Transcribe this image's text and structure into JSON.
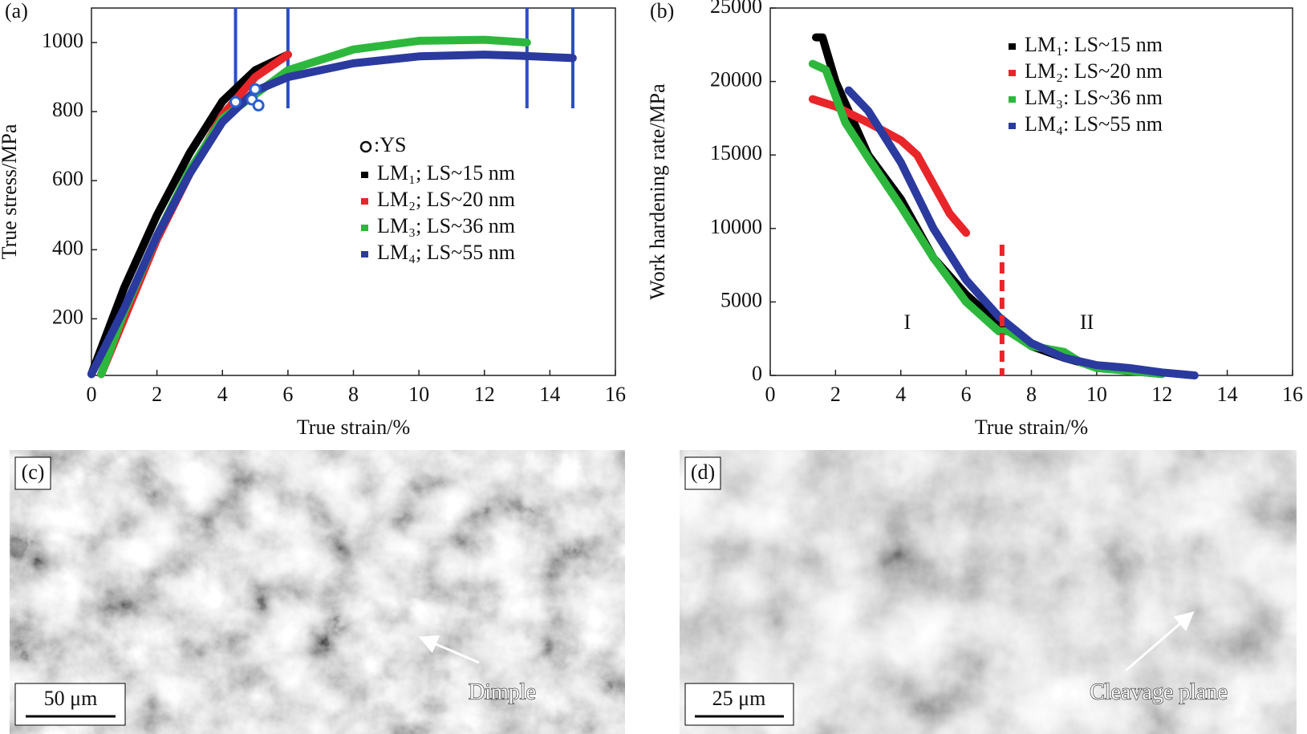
{
  "chart_data": [
    {
      "type": "line",
      "panel_label": "(a)",
      "x_label": "True strain/%",
      "y_label": "True stress/MPa",
      "xlim": [
        0,
        16
      ],
      "xticks": [
        0,
        2,
        4,
        6,
        8,
        10,
        12,
        14,
        16
      ],
      "ylim": [
        36,
        1100
      ],
      "yticks": [
        200,
        400,
        600,
        800,
        1000
      ],
      "legend": "center right",
      "ys": {
        "label": ":YS",
        "color": "#2b5fd0",
        "x": [
          4.4,
          4.9,
          5.0,
          5.1
        ],
        "values": [
          828,
          835,
          865,
          818
        ]
      },
      "fracture_x": [
        4.4,
        6,
        13.3,
        14.7
      ],
      "series": [
        {
          "name": "LM₁; LS~15 nm",
          "color": "#000000",
          "x": [
            0,
            1,
            2,
            3,
            4,
            5,
            6
          ],
          "values": [
            40,
            290,
            500,
            680,
            830,
            920,
            965
          ]
        },
        {
          "name": "LM₂; LS~20 nm",
          "color": "#e8262a",
          "x": [
            0.3,
            2,
            3,
            4,
            5,
            6
          ],
          "values": [
            40,
            430,
            620,
            790,
            900,
            965
          ]
        },
        {
          "name": "LM₃; LS~36 nm",
          "color": "#2db83d",
          "x": [
            0.3,
            1,
            2,
            3,
            4,
            6,
            8,
            10,
            12,
            13.3
          ],
          "values": [
            40,
            220,
            440,
            630,
            780,
            920,
            980,
            1005,
            1008,
            1000
          ]
        },
        {
          "name": "LM₄; LS~55 nm",
          "color": "#2b3a9e",
          "x": [
            0,
            1,
            2,
            3,
            4,
            5,
            6,
            8,
            10,
            12,
            13,
            14.7
          ],
          "values": [
            40,
            230,
            440,
            620,
            770,
            860,
            900,
            940,
            960,
            965,
            962,
            955
          ]
        }
      ]
    },
    {
      "type": "line",
      "panel_label": "(b)",
      "x_label": "True strain/%",
      "y_label": "Work hardening rate/MPa",
      "xlim": [
        0,
        16
      ],
      "xticks": [
        0,
        2,
        4,
        6,
        8,
        10,
        12,
        14,
        16
      ],
      "ylim": [
        0,
        25000
      ],
      "yticks": [
        0,
        5000,
        10000,
        15000,
        20000,
        25000
      ],
      "legend": "upper right",
      "divider_x": 7.1,
      "regions": [
        {
          "label": "I",
          "x": 4.2,
          "y": 3500
        },
        {
          "label": "II",
          "x": 9.7,
          "y": 3500
        }
      ],
      "series": [
        {
          "name": "LM₁: LS~15 nm",
          "color": "#000000",
          "x": [
            1.4,
            1.6,
            2,
            3,
            4,
            5,
            6,
            7,
            8,
            9,
            10,
            11,
            12
          ],
          "values": [
            23000,
            23000,
            20000,
            15000,
            12000,
            8000,
            5500,
            3500,
            2000,
            1200,
            600,
            300,
            100
          ]
        },
        {
          "name": "LM₂: LS~20 nm",
          "color": "#e8262a",
          "x": [
            1.3,
            2,
            3,
            4,
            4.5,
            5,
            5.5,
            6
          ],
          "values": [
            18800,
            18300,
            17200,
            16000,
            15000,
            13000,
            11000,
            9700
          ]
        },
        {
          "name": "LM₃: LS~36 nm",
          "color": "#2db83d",
          "x": [
            1.3,
            1.7,
            2.3,
            3,
            4,
            5,
            6,
            7,
            7.3,
            8,
            9,
            9.5,
            10,
            11,
            12
          ],
          "values": [
            21200,
            20800,
            17200,
            14800,
            11500,
            8000,
            5000,
            3000,
            3000,
            2000,
            1600,
            900,
            500,
            300,
            100
          ]
        },
        {
          "name": "LM₄: LS~55 nm",
          "color": "#2b3a9e",
          "x": [
            2.4,
            3,
            4,
            5,
            6,
            7,
            8,
            9,
            10,
            11,
            12,
            13
          ],
          "values": [
            19400,
            18000,
            14500,
            10000,
            6500,
            4000,
            2200,
            1200,
            700,
            500,
            200,
            0
          ]
        }
      ]
    }
  ],
  "images": [
    {
      "label": "(c)",
      "scale_bar": "50 μm",
      "annotation": "Dimple"
    },
    {
      "label": "(d)",
      "scale_bar": "25 μm",
      "annotation": "Cleavage plane"
    }
  ]
}
